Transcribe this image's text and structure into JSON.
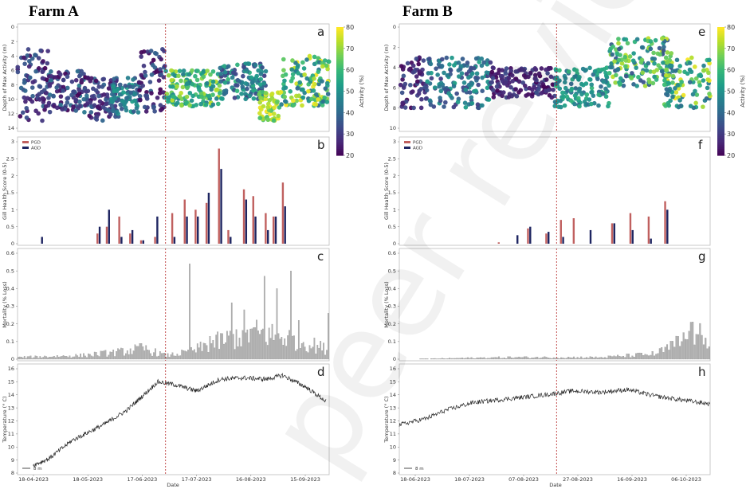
{
  "watermark": "peer reviewed",
  "chart_data": [
    {
      "farm": "Farm A",
      "x_dates": [
        "18-04-2023",
        "18-05-2023",
        "17-06-2023",
        "17-07-2023",
        "16-08-2023",
        "15-09-2023"
      ],
      "xlabel": "Date",
      "event_day": 95,
      "days": 200,
      "panels": [
        {
          "letter": "a",
          "type": "scatter",
          "ylabel": "Depth of Max Activity (m)",
          "ylim": [
            0,
            14
          ],
          "yticks": [
            0,
            2,
            4,
            6,
            8,
            10,
            12,
            14
          ],
          "inverted": true,
          "colorbar": {
            "label": "Activity (%)",
            "range": [
              20,
              80
            ],
            "ticks": [
              20,
              30,
              40,
              50,
              60,
              70,
              80
            ]
          },
          "segments": [
            {
              "x": [
                0,
                20
              ],
              "d": [
                3,
                13
              ],
              "a": [
                20,
                40
              ]
            },
            {
              "x": [
                20,
                45
              ],
              "d": [
                6,
                12
              ],
              "a": [
                20,
                45
              ]
            },
            {
              "x": [
                45,
                65
              ],
              "d": [
                7,
                13
              ],
              "a": [
                22,
                40
              ]
            },
            {
              "x": [
                60,
                78
              ],
              "d": [
                7,
                12
              ],
              "a": [
                35,
                55
              ]
            },
            {
              "x": [
                78,
                95
              ],
              "d": [
                3,
                12
              ],
              "a": [
                20,
                40
              ]
            },
            {
              "x": [
                95,
                130
              ],
              "d": [
                6,
                11
              ],
              "a": [
                45,
                75
              ]
            },
            {
              "x": [
                130,
                160
              ],
              "d": [
                5,
                10
              ],
              "a": [
                30,
                60
              ]
            },
            {
              "x": [
                155,
                168
              ],
              "d": [
                9,
                13
              ],
              "a": [
                60,
                80
              ]
            },
            {
              "x": [
                168,
                200
              ],
              "d": [
                4,
                11
              ],
              "a": [
                40,
                80
              ]
            }
          ]
        },
        {
          "letter": "b",
          "type": "bar",
          "ylabel": "Gill Health Score (0-5)",
          "ylim": [
            0,
            3
          ],
          "yticks": [
            0,
            0.5,
            1,
            1.5,
            2,
            2.5,
            3
          ],
          "legend": [
            "PGD",
            "AGD"
          ],
          "days": [
            15,
            52,
            58,
            66,
            73,
            80,
            89,
            100,
            108,
            115,
            122,
            130,
            136,
            146,
            152,
            160,
            165,
            171,
            177,
            183,
            190
          ],
          "pgd": [
            0.0,
            0.3,
            0.5,
            0.8,
            0.3,
            0.1,
            0.2,
            0.9,
            1.3,
            1.0,
            1.2,
            2.8,
            0.4,
            1.6,
            1.4,
            0.9,
            0.8,
            1.8,
            0.0,
            0.0,
            0.0
          ],
          "agd": [
            0.2,
            0.5,
            1.0,
            0.2,
            0.4,
            0.1,
            0.8,
            0.2,
            0.8,
            0.8,
            1.5,
            2.2,
            0.2,
            1.3,
            0.8,
            0.4,
            0.8,
            1.1,
            0.0,
            0.0,
            0.0
          ]
        },
        {
          "letter": "c",
          "type": "bar-daily",
          "ylabel": "Mortality (% Loss)",
          "ylim": [
            0,
            0.6
          ],
          "yticks": [
            0,
            0.1,
            0.2,
            0.3,
            0.4,
            0.5,
            0.6
          ],
          "peaks": [
            [
              110,
              0.54
            ],
            [
              123,
              0.13
            ],
            [
              137,
              0.32
            ],
            [
              145,
              0.28
            ],
            [
              158,
              0.47
            ],
            [
              166,
              0.4
            ],
            [
              175,
              0.5
            ],
            [
              180,
              0.22
            ],
            [
              199,
              0.26
            ]
          ],
          "profile": [
            [
              0,
              0.01
            ],
            [
              40,
              0.02
            ],
            [
              65,
              0.04
            ],
            [
              80,
              0.06
            ],
            [
              95,
              0.02
            ],
            [
              110,
              0.04
            ],
            [
              125,
              0.09
            ],
            [
              150,
              0.15
            ],
            [
              175,
              0.12
            ],
            [
              200,
              0.05
            ]
          ]
        },
        {
          "letter": "d",
          "type": "line",
          "ylabel": "Temperature (° C)",
          "ylim": [
            8,
            16
          ],
          "yticks": [
            8,
            9,
            10,
            11,
            12,
            13,
            14,
            15,
            16
          ],
          "legend": [
            "8 m"
          ],
          "keypoints": [
            [
              10,
              8.6
            ],
            [
              20,
              9.1
            ],
            [
              35,
              10.5
            ],
            [
              55,
              11.7
            ],
            [
              70,
              12.8
            ],
            [
              82,
              14.1
            ],
            [
              90,
              15.0
            ],
            [
              100,
              14.8
            ],
            [
              115,
              14.3
            ],
            [
              130,
              15.2
            ],
            [
              145,
              15.3
            ],
            [
              160,
              15.2
            ],
            [
              170,
              15.5
            ],
            [
              185,
              14.6
            ],
            [
              198,
              13.5
            ]
          ]
        }
      ]
    },
    {
      "farm": "Farm B",
      "x_dates": [
        "18-06-2023",
        "18-07-2023",
        "07-08-2023",
        "27-08-2023",
        "16-09-2023",
        "06-10-2023"
      ],
      "xlabel": "Date",
      "event_day": 86,
      "days": 170,
      "panels": [
        {
          "letter": "e",
          "type": "scatter",
          "ylabel": "Depth of Max Activity (m)",
          "ylim": [
            0,
            10
          ],
          "yticks": [
            0,
            2,
            4,
            6,
            8,
            10
          ],
          "inverted": true,
          "colorbar": {
            "label": "Activity (%)",
            "range": [
              20,
              80
            ],
            "ticks": [
              20,
              30,
              40,
              50,
              60,
              70,
              80
            ]
          },
          "segments": [
            {
              "x": [
                0,
                15
              ],
              "d": [
                3,
                8
              ],
              "a": [
                20,
                35
              ]
            },
            {
              "x": [
                15,
                50
              ],
              "d": [
                3,
                8
              ],
              "a": [
                30,
                55
              ]
            },
            {
              "x": [
                50,
                85
              ],
              "d": [
                4,
                7
              ],
              "a": [
                20,
                35
              ]
            },
            {
              "x": [
                85,
                115
              ],
              "d": [
                4,
                8
              ],
              "a": [
                40,
                60
              ]
            },
            {
              "x": [
                115,
                150
              ],
              "d": [
                1,
                6
              ],
              "a": [
                35,
                75
              ]
            },
            {
              "x": [
                145,
                170
              ],
              "d": [
                3,
                8
              ],
              "a": [
                40,
                80
              ]
            }
          ]
        },
        {
          "letter": "f",
          "type": "bar",
          "ylabel": "Gill Health Score (0-5)",
          "ylim": [
            0,
            3
          ],
          "yticks": [
            0,
            0.5,
            1,
            1.5,
            2,
            2.5,
            3
          ],
          "legend": [
            "PGD",
            "AGD"
          ],
          "days": [
            55,
            64,
            71,
            81,
            89,
            96,
            104,
            117,
            127,
            137,
            146,
            154
          ],
          "pgd": [
            0.04,
            0.0,
            0.45,
            0.3,
            0.7,
            0.75,
            0.0,
            0.6,
            0.9,
            0.8,
            1.25,
            0.0
          ],
          "agd": [
            0.0,
            0.25,
            0.5,
            0.35,
            0.2,
            0.0,
            0.4,
            0.6,
            0.4,
            0.15,
            1.0,
            0.0
          ]
        },
        {
          "letter": "g",
          "type": "bar-daily",
          "ylabel": "Mortality (% Loss)",
          "ylim": [
            0,
            0.6
          ],
          "yticks": [
            0,
            0.1,
            0.2,
            0.3,
            0.4,
            0.5,
            0.6
          ],
          "peaks": [
            [
              159,
              0.21
            ],
            [
              163,
              0.14
            ],
            [
              167,
              0.12
            ]
          ],
          "profile": [
            [
              0,
              0.0
            ],
            [
              60,
              0.01
            ],
            [
              110,
              0.01
            ],
            [
              140,
              0.03
            ],
            [
              150,
              0.08
            ],
            [
              160,
              0.14
            ],
            [
              170,
              0.11
            ]
          ]
        },
        {
          "letter": "h",
          "type": "line",
          "ylabel": "Temperature (° C)",
          "ylim": [
            8,
            16
          ],
          "yticks": [
            8,
            9,
            10,
            11,
            12,
            13,
            14,
            15,
            16
          ],
          "legend": [
            "8 m"
          ],
          "keypoints": [
            [
              0,
              11.7
            ],
            [
              15,
              12.2
            ],
            [
              25,
              12.8
            ],
            [
              40,
              13.4
            ],
            [
              60,
              13.7
            ],
            [
              80,
              14.0
            ],
            [
              95,
              14.3
            ],
            [
              110,
              14.2
            ],
            [
              125,
              14.4
            ],
            [
              140,
              13.9
            ],
            [
              155,
              13.6
            ],
            [
              170,
              13.3
            ]
          ]
        }
      ]
    }
  ]
}
